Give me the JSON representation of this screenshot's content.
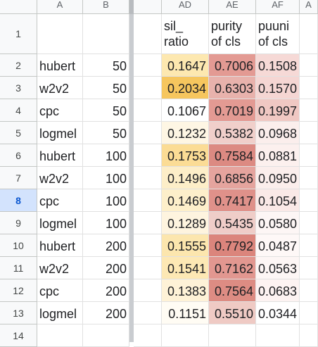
{
  "columns": {
    "left": [
      "A",
      "B"
    ],
    "right": [
      " ",
      "AD",
      "AE",
      "AF",
      "A"
    ]
  },
  "rows": [
    "1",
    "2",
    "3",
    "4",
    "5",
    "6",
    "7",
    "8",
    "9",
    "10",
    "11",
    "12",
    "13",
    "14"
  ],
  "selected_row": "8",
  "headers": {
    "AD": "sil_ ratio",
    "AE": "purity of cls",
    "AF": "puuni of cls"
  },
  "data": [
    {
      "a": "hubert",
      "b": "50",
      "ad": "0.1647",
      "ae": "0.7006",
      "af": "0.1508"
    },
    {
      "a": "w2v2",
      "b": "50",
      "ad": "0.2034",
      "ae": "0.6303",
      "af": "0.1570"
    },
    {
      "a": "cpc",
      "b": "50",
      "ad": "0.1067",
      "ae": "0.7019",
      "af": "0.1997"
    },
    {
      "a": "logmel",
      "b": "50",
      "ad": "0.1232",
      "ae": "0.5382",
      "af": "0.0968"
    },
    {
      "a": "hubert",
      "b": "100",
      "ad": "0.1753",
      "ae": "0.7584",
      "af": "0.0881"
    },
    {
      "a": "w2v2",
      "b": "100",
      "ad": "0.1496",
      "ae": "0.6856",
      "af": "0.0950"
    },
    {
      "a": "cpc",
      "b": "100",
      "ad": "0.1469",
      "ae": "0.7417",
      "af": "0.1054"
    },
    {
      "a": "logmel",
      "b": "100",
      "ad": "0.1289",
      "ae": "0.5435",
      "af": "0.0580"
    },
    {
      "a": "hubert",
      "b": "200",
      "ad": "0.1555",
      "ae": "0.7792",
      "af": "0.0487"
    },
    {
      "a": "w2v2",
      "b": "200",
      "ad": "0.1541",
      "ae": "0.7162",
      "af": "0.0563"
    },
    {
      "a": "cpc",
      "b": "200",
      "ad": "0.1383",
      "ae": "0.7564",
      "af": "0.0683"
    },
    {
      "a": "logmel",
      "b": "200",
      "ad": "0.1151",
      "ae": "0.5510",
      "af": "0.0344"
    }
  ],
  "heatmap": {
    "ad_colors": [
      "#fde8b0",
      "#f6c65e",
      "#ffffff",
      "#fef6e4",
      "#fbdc95",
      "#fdeec8",
      "#fdefca",
      "#fef4df",
      "#fce6ae",
      "#fde8b4",
      "#fef2d7",
      "#fffcf4"
    ],
    "ae_colors": [
      "#e39a93",
      "#e8b2ac",
      "#e39a93",
      "#f0cfca",
      "#dc8a82",
      "#e5a49e",
      "#df918a",
      "#efcdc8",
      "#db857c",
      "#e29790",
      "#dd8c83",
      "#efcac4"
    ],
    "af_colors": [
      "#f6d9d6",
      "#f5d6d3",
      "#f0c8c3",
      "#fbeeec",
      "#fcf0ee",
      "#fbeeec",
      "#fae9e7",
      "#fdf6f5",
      "#fef8f7",
      "#fdf6f5",
      "#fdf3f2",
      "#ffffff"
    ]
  }
}
